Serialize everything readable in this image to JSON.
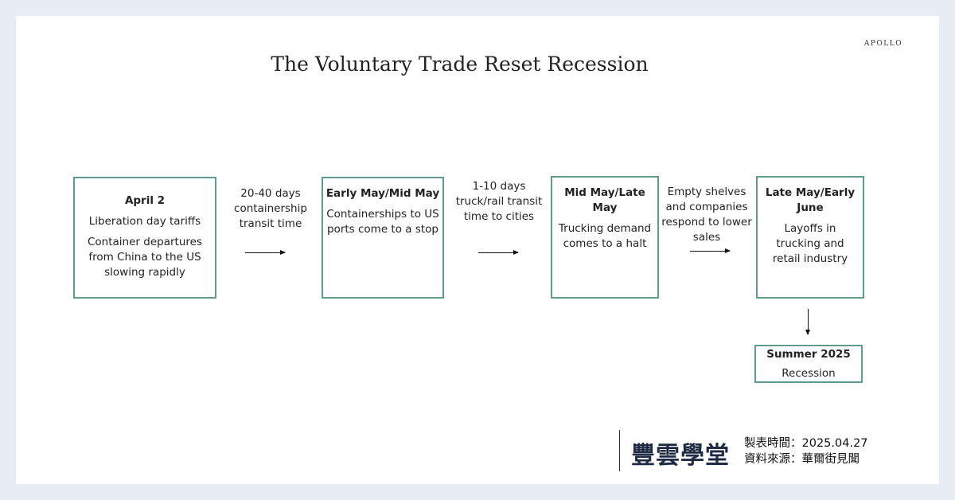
{
  "title": "The Voluntary Trade Reset Recession",
  "brand": "APOLLO",
  "steps": [
    {
      "heading": "April 2",
      "lines": [
        "Liberation day tariffs",
        "Container departures from China to the US slowing rapidly"
      ]
    },
    {
      "heading": "Early May/Mid May",
      "lines": [
        "Containerships to US ports come to a stop"
      ]
    },
    {
      "heading": "Mid May/Late May",
      "lines": [
        "Trucking demand comes to a halt"
      ]
    },
    {
      "heading": "Late May/Early June",
      "lines": [
        "Layoffs in trucking and retail industry"
      ]
    }
  ],
  "transitions": [
    "20-40 days containership transit time",
    "1-10 days truck/rail transit time to cities",
    "Empty shelves and companies respond to lower sales"
  ],
  "final": {
    "heading": "Summer 2025",
    "line": "Recession"
  },
  "footer": {
    "logo": "豐雲學堂",
    "date_label": "製表時間：",
    "date": "2025.04.27",
    "source_label": "資料來源：",
    "source": "華爾街見聞"
  },
  "colors": {
    "box_border": "#5f9a8c",
    "background": "#e8ecf5"
  }
}
